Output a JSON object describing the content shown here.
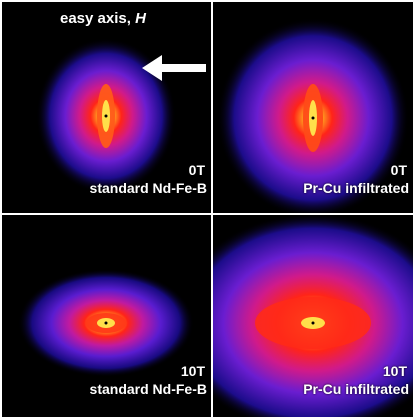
{
  "axis": {
    "label": "easy axis, ",
    "symbol": "H",
    "arrow_icon": "arrow-left-icon"
  },
  "panels": [
    {
      "field": "0T",
      "sample": "standard Nd-Fe-B"
    },
    {
      "field": "0T",
      "sample": "Pr-Cu infiltrated"
    },
    {
      "field": "10T",
      "sample": "standard Nd-Fe-B"
    },
    {
      "field": "10T",
      "sample": "Pr-Cu infiltrated"
    }
  ],
  "colors": {
    "background": "#000000",
    "outer_halo": "#1a0a8a",
    "mid_halo": "#7a1fd6",
    "inner": "#ff2a1a",
    "core": "#ffd23a"
  }
}
